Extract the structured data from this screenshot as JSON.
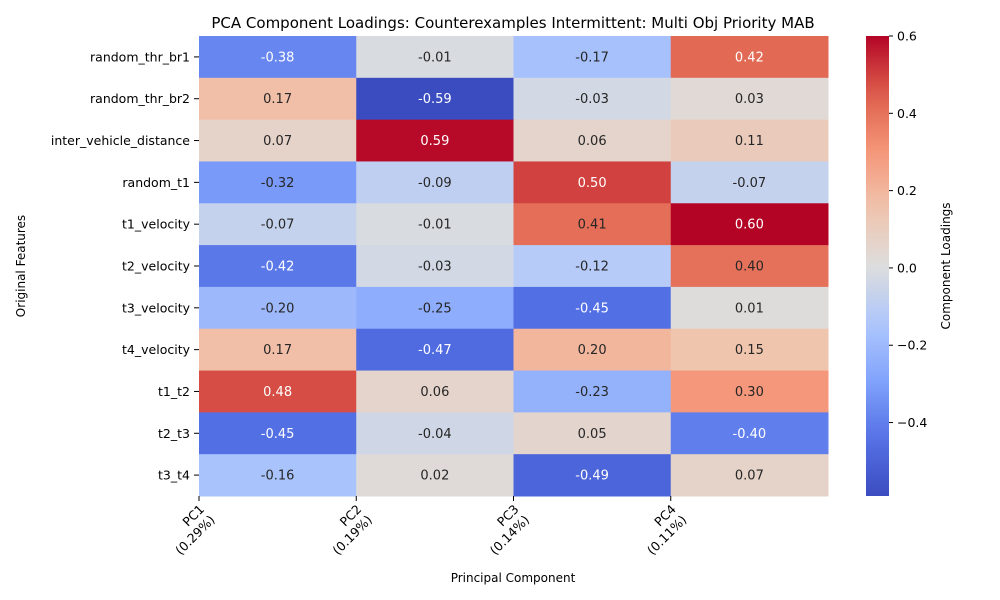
{
  "chart_data": {
    "type": "heatmap",
    "title": "PCA Component Loadings: Counterexamples Intermittent: Multi Obj Priority MAB",
    "xlabel": "Principal Component",
    "ylabel": "Original Features",
    "colorbar_label": "Component Loadings",
    "colormap": "coolwarm",
    "vmin": -0.59,
    "vmax": 0.6,
    "colorbar_ticks": [
      "0.6",
      "0.4",
      "0.2",
      "0.0",
      "−0.2",
      "−0.4"
    ],
    "colorbar_tick_values": [
      0.6,
      0.4,
      0.2,
      0.0,
      -0.2,
      -0.4
    ],
    "columns": [
      {
        "label": "PC1",
        "sublabel": "(0.29%)"
      },
      {
        "label": "PC2",
        "sublabel": "(0.19%)"
      },
      {
        "label": "PC3",
        "sublabel": "(0.14%)"
      },
      {
        "label": "PC4",
        "sublabel": "(0.11%)"
      }
    ],
    "rows": [
      "random_thr_br1",
      "random_thr_br2",
      "inter_vehicle_distance",
      "random_t1",
      "t1_velocity",
      "t2_velocity",
      "t3_velocity",
      "t4_velocity",
      "t1_t2",
      "t2_t3",
      "t3_t4"
    ],
    "values": [
      [
        -0.38,
        -0.01,
        -0.17,
        0.42
      ],
      [
        0.17,
        -0.59,
        -0.03,
        0.03
      ],
      [
        0.07,
        0.59,
        0.06,
        0.11
      ],
      [
        -0.32,
        -0.09,
        0.5,
        -0.07
      ],
      [
        -0.07,
        -0.01,
        0.41,
        0.6
      ],
      [
        -0.42,
        -0.03,
        -0.12,
        0.4
      ],
      [
        -0.2,
        -0.25,
        -0.45,
        0.01
      ],
      [
        0.17,
        -0.47,
        0.2,
        0.15
      ],
      [
        0.48,
        0.06,
        -0.23,
        0.3
      ],
      [
        -0.45,
        -0.04,
        0.05,
        -0.4
      ],
      [
        -0.16,
        0.02,
        -0.49,
        0.07
      ]
    ],
    "labels": [
      [
        "-0.38",
        "-0.01",
        "-0.17",
        "0.42"
      ],
      [
        "0.17",
        "-0.59",
        "-0.03",
        "0.03"
      ],
      [
        "0.07",
        "0.59",
        "0.06",
        "0.11"
      ],
      [
        "-0.32",
        "-0.09",
        "0.50",
        "-0.07"
      ],
      [
        "-0.07",
        "-0.01",
        "0.41",
        "0.60"
      ],
      [
        "-0.42",
        "-0.03",
        "-0.12",
        "0.40"
      ],
      [
        "-0.20",
        "-0.25",
        "-0.45",
        "0.01"
      ],
      [
        "0.17",
        "-0.47",
        "0.20",
        "0.15"
      ],
      [
        "0.48",
        "0.06",
        "-0.23",
        "0.30"
      ],
      [
        "-0.45",
        "-0.04",
        "0.05",
        "-0.40"
      ],
      [
        "-0.16",
        "0.02",
        "-0.49",
        "0.07"
      ]
    ]
  }
}
